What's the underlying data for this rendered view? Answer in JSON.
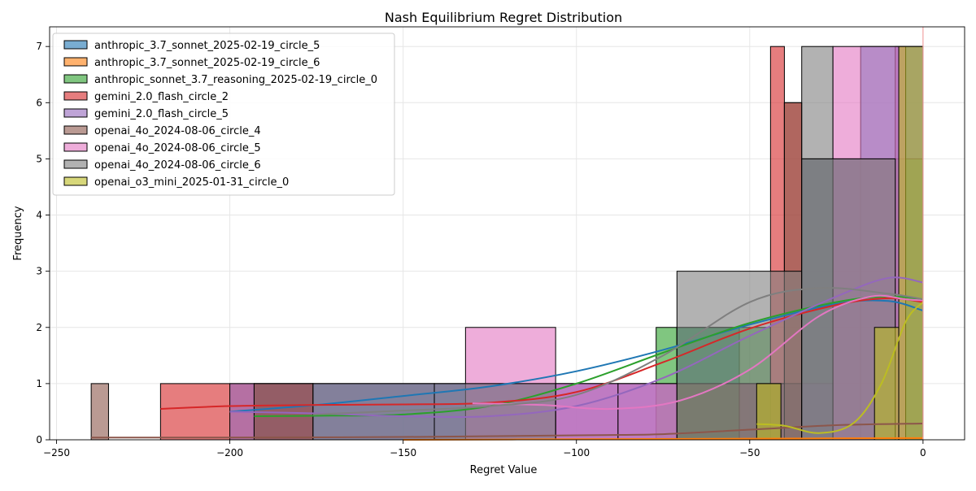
{
  "chart_data": {
    "type": "histogram",
    "title": "Nash Equilibrium Regret Distribution",
    "xlabel": "Regret Value",
    "ylabel": "Frequency",
    "xlim": [
      -252,
      12
    ],
    "ylim": [
      0,
      7.35
    ],
    "x_ticks": [
      -250,
      -200,
      -150,
      -100,
      -50,
      0
    ],
    "x_tick_labels": [
      "−250",
      "−200",
      "−150",
      "−100",
      "−50",
      "0"
    ],
    "y_ticks": [
      0,
      1,
      2,
      3,
      4,
      5,
      6,
      7
    ],
    "y_tick_labels": [
      "0",
      "1",
      "2",
      "3",
      "4",
      "5",
      "6",
      "7"
    ],
    "grid": true,
    "legend_position": "upper-left",
    "reference_line_x": 0,
    "series": [
      {
        "name": "anthropic_3.7_sonnet_2025-02-19_circle_5",
        "color": "#1f77b4",
        "bins": [
          [
            -176,
            -106,
            1
          ],
          [
            -106,
            -88,
            1
          ],
          [
            -88,
            -71,
            1
          ],
          [
            -71,
            -53,
            2
          ],
          [
            -35,
            -18,
            5
          ],
          [
            -18,
            0,
            7
          ]
        ],
        "kde": [
          [
            -200,
            0.5
          ],
          [
            -175,
            0.62
          ],
          [
            -150,
            0.78
          ],
          [
            -125,
            0.95
          ],
          [
            -100,
            1.22
          ],
          [
            -75,
            1.6
          ],
          [
            -50,
            2.05
          ],
          [
            -25,
            2.42
          ],
          [
            -10,
            2.47
          ],
          [
            0,
            2.3
          ]
        ]
      },
      {
        "name": "anthropic_3.7_sonnet_2025-02-19_circle_6",
        "color": "#ff7f0e",
        "bins": [],
        "kde": [
          [
            -150,
            0.0
          ],
          [
            -100,
            0.01
          ],
          [
            -50,
            0.02
          ],
          [
            0,
            0.03
          ]
        ]
      },
      {
        "name": "anthropic_sonnet_3.7_reasoning_2025-02-19_circle_0",
        "color": "#2ca02c",
        "bins": [
          [
            -193,
            -176,
            1
          ],
          [
            -77,
            -71,
            2
          ],
          [
            -71,
            -44,
            2
          ],
          [
            -35,
            0,
            5
          ]
        ],
        "kde": [
          [
            -193,
            0.42
          ],
          [
            -170,
            0.43
          ],
          [
            -150,
            0.45
          ],
          [
            -125,
            0.6
          ],
          [
            -100,
            1.0
          ],
          [
            -75,
            1.55
          ],
          [
            -50,
            2.08
          ],
          [
            -25,
            2.45
          ],
          [
            -10,
            2.55
          ],
          [
            0,
            2.5
          ]
        ]
      },
      {
        "name": "gemini_2.0_flash_circle_2",
        "color": "#d62728",
        "bins": [
          [
            -220,
            -193,
            1
          ],
          [
            -193,
            -176,
            1
          ],
          [
            -44,
            -40,
            7
          ],
          [
            -40,
            -35,
            6
          ]
        ],
        "kde": [
          [
            -220,
            0.55
          ],
          [
            -200,
            0.6
          ],
          [
            -175,
            0.62
          ],
          [
            -150,
            0.63
          ],
          [
            -125,
            0.66
          ],
          [
            -100,
            0.85
          ],
          [
            -75,
            1.38
          ],
          [
            -50,
            1.98
          ],
          [
            -25,
            2.4
          ],
          [
            -10,
            2.52
          ],
          [
            0,
            2.45
          ]
        ]
      },
      {
        "name": "gemini_2.0_flash_circle_5",
        "color": "#9467bd",
        "bins": [
          [
            -200,
            -176,
            1
          ],
          [
            -176,
            -141,
            1
          ],
          [
            -141,
            -106,
            1
          ],
          [
            -106,
            -71,
            1
          ],
          [
            -53,
            -26,
            1
          ],
          [
            -35,
            -8,
            5
          ],
          [
            -8,
            0,
            7
          ]
        ],
        "kde": [
          [
            -200,
            0.5
          ],
          [
            -175,
            0.47
          ],
          [
            -150,
            0.42
          ],
          [
            -125,
            0.42
          ],
          [
            -100,
            0.6
          ],
          [
            -75,
            1.1
          ],
          [
            -50,
            1.85
          ],
          [
            -25,
            2.55
          ],
          [
            -10,
            2.88
          ],
          [
            0,
            2.8
          ]
        ]
      },
      {
        "name": "openai_4o_2024-08-06_circle_4",
        "color": "#8c564b",
        "bins": [
          [
            -240,
            -235,
            1
          ],
          [
            -193,
            -176,
            1
          ],
          [
            -71,
            -35,
            1
          ],
          [
            -40,
            -35,
            6
          ]
        ],
        "kde": [
          [
            -240,
            0.04
          ],
          [
            -200,
            0.04
          ],
          [
            -150,
            0.05
          ],
          [
            -100,
            0.08
          ],
          [
            -75,
            0.1
          ],
          [
            -50,
            0.18
          ],
          [
            -25,
            0.26
          ],
          [
            0,
            0.29
          ]
        ]
      },
      {
        "name": "openai_4o_2024-08-06_circle_5",
        "color": "#e377c2",
        "bins": [
          [
            -132,
            -106,
            2
          ],
          [
            -106,
            -88,
            1
          ],
          [
            -88,
            -71,
            1
          ],
          [
            -26,
            -5,
            7
          ]
        ],
        "kde": [
          [
            -130,
            0.65
          ],
          [
            -110,
            0.62
          ],
          [
            -90,
            0.55
          ],
          [
            -70,
            0.7
          ],
          [
            -50,
            1.25
          ],
          [
            -30,
            2.2
          ],
          [
            -15,
            2.55
          ],
          [
            -5,
            2.5
          ],
          [
            0,
            2.48
          ]
        ]
      },
      {
        "name": "openai_4o_2024-08-06_circle_6",
        "color": "#7f7f7f",
        "bins": [
          [
            -176,
            -141,
            1
          ],
          [
            -141,
            -106,
            1
          ],
          [
            -71,
            -35,
            3
          ],
          [
            -35,
            -26,
            7
          ],
          [
            -35,
            -8,
            5
          ]
        ],
        "kde": [
          [
            -176,
            0.45
          ],
          [
            -150,
            0.52
          ],
          [
            -125,
            0.6
          ],
          [
            -100,
            0.8
          ],
          [
            -75,
            1.5
          ],
          [
            -50,
            2.45
          ],
          [
            -30,
            2.7
          ],
          [
            -10,
            2.6
          ],
          [
            0,
            2.5
          ]
        ]
      },
      {
        "name": "openai_o3_mini_2025-01-31_circle_0",
        "color": "#bcbd22",
        "bins": [
          [
            -48,
            -41,
            1
          ],
          [
            -14,
            -7,
            2
          ],
          [
            -7,
            0,
            7
          ]
        ],
        "kde": [
          [
            -48,
            0.28
          ],
          [
            -40,
            0.25
          ],
          [
            -30,
            0.12
          ],
          [
            -20,
            0.3
          ],
          [
            -12,
            1.0
          ],
          [
            -5,
            2.1
          ],
          [
            0,
            2.45
          ]
        ]
      }
    ]
  }
}
